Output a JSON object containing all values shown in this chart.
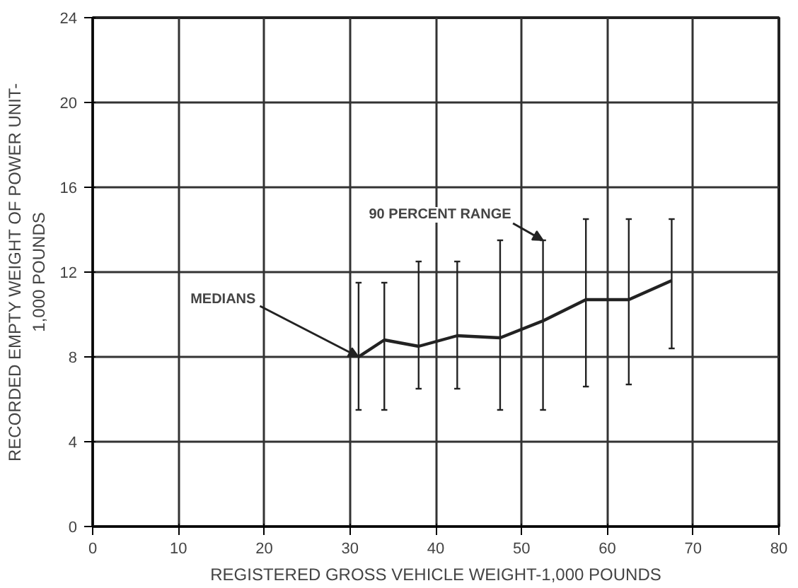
{
  "chart_data": {
    "type": "line",
    "xlabel": "REGISTERED GROSS VEHICLE WEIGHT-1,000 POUNDS",
    "ylabel": "RECORDED EMPTY WEIGHT OF POWER UNIT-\n1,000 POUNDS",
    "x": [
      31,
      34,
      38,
      42.5,
      47.5,
      52.5,
      57.5,
      62.5,
      67.5
    ],
    "series": [
      {
        "color": "#222222",
        "values": [
          8.0,
          8.8,
          8.5,
          9.0,
          8.9,
          9.7,
          10.7,
          10.7,
          11.6
        ],
        "errors": [
          [
            5.5,
            11.5
          ],
          [
            5.5,
            11.5
          ],
          [
            6.5,
            12.5
          ],
          [
            6.5,
            12.5
          ],
          [
            5.5,
            13.5
          ],
          [
            5.5,
            13.5
          ],
          [
            6.6,
            14.5
          ],
          [
            6.7,
            14.5
          ],
          [
            8.4,
            14.5
          ]
        ]
      }
    ],
    "xlim": [
      0,
      80
    ],
    "ylim": [
      0,
      24
    ],
    "xticks": [
      0,
      10,
      20,
      30,
      40,
      50,
      60,
      70,
      80
    ],
    "yticks": [
      0,
      4,
      8,
      12,
      16,
      20,
      24
    ],
    "grid": true,
    "marker": "none",
    "line_style": "solid",
    "annotations": [
      {
        "text": "MEDIANS",
        "x": 31,
        "y": 8.0
      },
      {
        "text": "90 PERCENT RANGE",
        "x": 52.5,
        "y": 13.5
      }
    ]
  }
}
